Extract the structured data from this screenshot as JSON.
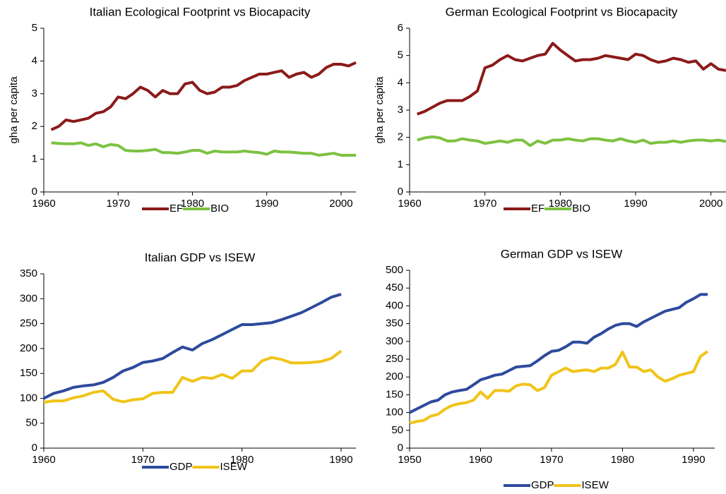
{
  "chart_data": [
    {
      "type": "line",
      "title": "Italian Ecological Footprint vs Biocapacity",
      "y_label": "gha per capita",
      "x": [
        1961,
        1962,
        1963,
        1964,
        1965,
        1966,
        1967,
        1968,
        1969,
        1970,
        1971,
        1972,
        1973,
        1974,
        1975,
        1976,
        1977,
        1978,
        1979,
        1980,
        1981,
        1982,
        1983,
        1984,
        1985,
        1986,
        1987,
        1988,
        1989,
        1990,
        1991,
        1992,
        1993,
        1994,
        1995,
        1996,
        1997,
        1998,
        1999,
        2000,
        2001,
        2002
      ],
      "series": [
        {
          "name": "EF",
          "color": "#8b1a1a",
          "values": [
            1.9,
            2.0,
            2.2,
            2.15,
            2.2,
            2.25,
            2.4,
            2.45,
            2.6,
            2.9,
            2.85,
            3.0,
            3.2,
            3.1,
            2.9,
            3.1,
            3.0,
            3.0,
            3.3,
            3.35,
            3.1,
            3.0,
            3.05,
            3.2,
            3.2,
            3.25,
            3.4,
            3.5,
            3.6,
            3.6,
            3.65,
            3.7,
            3.5,
            3.6,
            3.65,
            3.5,
            3.6,
            3.8,
            3.9,
            3.9,
            3.85,
            3.95
          ]
        },
        {
          "name": "BIO",
          "color": "#7dc242",
          "values": [
            1.5,
            1.48,
            1.47,
            1.47,
            1.5,
            1.42,
            1.47,
            1.38,
            1.45,
            1.42,
            1.27,
            1.25,
            1.25,
            1.27,
            1.3,
            1.2,
            1.2,
            1.18,
            1.22,
            1.27,
            1.27,
            1.18,
            1.25,
            1.22,
            1.22,
            1.22,
            1.25,
            1.22,
            1.2,
            1.15,
            1.25,
            1.22,
            1.22,
            1.2,
            1.18,
            1.18,
            1.12,
            1.15,
            1.18,
            1.12,
            1.12,
            1.12
          ]
        }
      ],
      "xlim": [
        1960,
        2002
      ],
      "xticks": [
        1960,
        1970,
        1980,
        1990,
        2000
      ],
      "ylim": [
        0,
        5
      ],
      "yticks": [
        0,
        1,
        2,
        3,
        4,
        5
      ],
      "legend": "bottom"
    },
    {
      "type": "line",
      "title": "German Ecological Footprint vs Biocapacity",
      "y_label": "gha per capita",
      "x": [
        1961,
        1962,
        1963,
        1964,
        1965,
        1966,
        1967,
        1968,
        1969,
        1970,
        1971,
        1972,
        1973,
        1974,
        1975,
        1976,
        1977,
        1978,
        1979,
        1980,
        1981,
        1982,
        1983,
        1984,
        1985,
        1986,
        1987,
        1988,
        1989,
        1990,
        1991,
        1992,
        1993,
        1994,
        1995,
        1996,
        1997,
        1998,
        1999,
        2000,
        2001,
        2002
      ],
      "series": [
        {
          "name": "EF",
          "color": "#8b1a1a",
          "values": [
            2.85,
            2.95,
            3.1,
            3.25,
            3.35,
            3.35,
            3.35,
            3.5,
            3.7,
            4.55,
            4.65,
            4.85,
            5.0,
            4.85,
            4.8,
            4.9,
            5.0,
            5.05,
            5.45,
            5.2,
            5.0,
            4.8,
            4.85,
            4.85,
            4.9,
            5.0,
            4.95,
            4.9,
            4.85,
            5.05,
            5.0,
            4.85,
            4.75,
            4.8,
            4.9,
            4.85,
            4.75,
            4.8,
            4.5,
            4.7,
            4.5,
            4.45
          ]
        },
        {
          "name": "BIO",
          "color": "#7dc242",
          "values": [
            1.9,
            1.98,
            2.02,
            1.98,
            1.87,
            1.87,
            1.95,
            1.9,
            1.87,
            1.78,
            1.82,
            1.87,
            1.82,
            1.9,
            1.9,
            1.7,
            1.87,
            1.78,
            1.9,
            1.9,
            1.95,
            1.9,
            1.87,
            1.95,
            1.95,
            1.9,
            1.87,
            1.95,
            1.87,
            1.82,
            1.9,
            1.78,
            1.82,
            1.82,
            1.87,
            1.82,
            1.87,
            1.9,
            1.9,
            1.87,
            1.9,
            1.85
          ]
        }
      ],
      "xlim": [
        1960,
        2002
      ],
      "xticks": [
        1960,
        1970,
        1980,
        1990,
        2000
      ],
      "ylim": [
        0,
        6
      ],
      "yticks": [
        0,
        1,
        2,
        3,
        4,
        5,
        6
      ],
      "legend": "bottom"
    },
    {
      "type": "line",
      "title": "Italian GDP vs ISEW",
      "x": [
        1960,
        1961,
        1962,
        1963,
        1964,
        1965,
        1966,
        1967,
        1968,
        1969,
        1970,
        1971,
        1972,
        1973,
        1974,
        1975,
        1976,
        1977,
        1978,
        1979,
        1980,
        1981,
        1982,
        1983,
        1984,
        1985,
        1986,
        1987,
        1988,
        1989,
        1990
      ],
      "series": [
        {
          "name": "GDP",
          "color": "#2e4a9e",
          "values": [
            100,
            110,
            115,
            122,
            125,
            127,
            132,
            142,
            155,
            162,
            172,
            175,
            180,
            192,
            203,
            197,
            210,
            218,
            228,
            238,
            248,
            248,
            250,
            252,
            258,
            265,
            272,
            282,
            292,
            303,
            309
          ]
        },
        {
          "name": "ISEW",
          "color": "#f0c419",
          "values": [
            92,
            95,
            95,
            101,
            105,
            112,
            115,
            98,
            93,
            97,
            99,
            110,
            112,
            112,
            142,
            134,
            142,
            140,
            148,
            140,
            155,
            155,
            175,
            182,
            178,
            171,
            171,
            172,
            174,
            180,
            195
          ]
        }
      ],
      "xlim": [
        1960,
        1991.5
      ],
      "xticks": [
        1960,
        1970,
        1980,
        1990
      ],
      "ylim": [
        0,
        350
      ],
      "yticks": [
        0,
        50,
        100,
        150,
        200,
        250,
        300,
        350
      ],
      "legend": "bottom"
    },
    {
      "type": "line",
      "title": "German GDP vs ISEW",
      "x": [
        1950,
        1951,
        1952,
        1953,
        1954,
        1955,
        1956,
        1957,
        1958,
        1959,
        1960,
        1961,
        1962,
        1963,
        1964,
        1965,
        1966,
        1967,
        1968,
        1969,
        1970,
        1971,
        1972,
        1973,
        1974,
        1975,
        1976,
        1977,
        1978,
        1979,
        1980,
        1981,
        1982,
        1983,
        1984,
        1985,
        1986,
        1987,
        1988,
        1989,
        1990,
        1991,
        1992
      ],
      "series": [
        {
          "name": "GDP",
          "color": "#2e4a9e",
          "values": [
            100,
            110,
            120,
            130,
            135,
            150,
            158,
            162,
            165,
            178,
            192,
            198,
            205,
            208,
            218,
            228,
            230,
            232,
            245,
            260,
            272,
            275,
            285,
            298,
            298,
            295,
            312,
            322,
            335,
            345,
            350,
            350,
            342,
            355,
            365,
            375,
            385,
            390,
            395,
            410,
            420,
            432,
            432
          ]
        },
        {
          "name": "ISEW",
          "color": "#f0c419",
          "values": [
            70,
            75,
            78,
            90,
            95,
            110,
            120,
            125,
            128,
            135,
            158,
            140,
            162,
            162,
            160,
            175,
            180,
            178,
            162,
            170,
            205,
            215,
            225,
            215,
            218,
            220,
            215,
            225,
            225,
            235,
            270,
            228,
            228,
            215,
            220,
            200,
            188,
            195,
            205,
            210,
            215,
            258,
            272
          ]
        }
      ],
      "xlim": [
        1950,
        1993
      ],
      "xticks": [
        1950,
        1960,
        1970,
        1980,
        1990
      ],
      "ylim": [
        0,
        500
      ],
      "yticks": [
        0,
        50,
        100,
        150,
        200,
        250,
        300,
        350,
        400,
        450,
        500
      ],
      "legend": "bottom"
    }
  ]
}
